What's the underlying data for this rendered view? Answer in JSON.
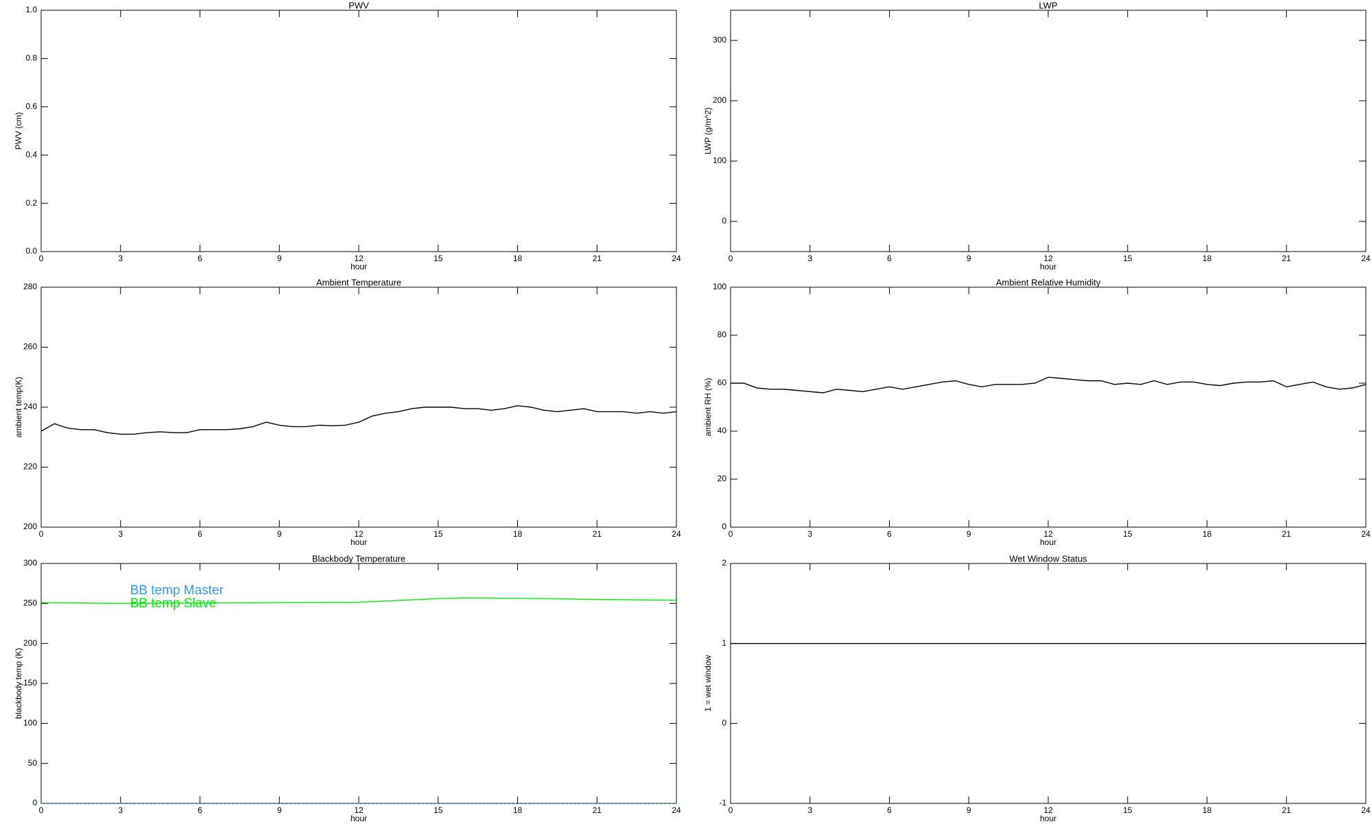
{
  "chart_data": [
    {
      "type": "line",
      "title": "PWV",
      "xlabel": "hour",
      "ylabel": "PWV (cm)",
      "xlim": [
        0,
        24
      ],
      "xticks": [
        0,
        3,
        6,
        9,
        12,
        15,
        18,
        21,
        24
      ],
      "ylim": [
        0,
        1
      ],
      "yticks": [
        {
          "value": 0,
          "label": "0.0"
        },
        0.2,
        0.4,
        0.6,
        0.8,
        {
          "value": 1,
          "label": "1.0"
        }
      ]
    },
    {
      "type": "line",
      "title": "LWP",
      "xlabel": "hour",
      "ylabel": "LWP (g/m^2)",
      "xlim": [
        0,
        24
      ],
      "xticks": [
        0,
        3,
        6,
        9,
        12,
        15,
        18,
        21,
        24
      ],
      "ylim": [
        -50,
        350
      ],
      "yticks": [
        0,
        100,
        200,
        300
      ]
    },
    {
      "type": "line",
      "title": "Ambient Temperature",
      "xlabel": "hour",
      "ylabel": "ambient temp(K)",
      "xlim": [
        0,
        24
      ],
      "xticks": [
        0,
        3,
        6,
        9,
        12,
        15,
        18,
        21,
        24
      ],
      "ylim": [
        200,
        280
      ],
      "yticks": [
        200,
        220,
        240,
        260,
        280
      ],
      "x": [
        0,
        0.5,
        1,
        1.5,
        2,
        2.5,
        3,
        3.5,
        4,
        4.5,
        5,
        5.5,
        6,
        6.5,
        7,
        7.5,
        8,
        8.5,
        9,
        9.5,
        10,
        10.5,
        11,
        11.5,
        12,
        12.5,
        13,
        13.5,
        14,
        14.5,
        15,
        15.5,
        16,
        16.5,
        17,
        17.5,
        18,
        18.5,
        19,
        19.5,
        20,
        20.5,
        21,
        21.5,
        22,
        22.5,
        23,
        23.5,
        24
      ],
      "series": [
        {
          "color": "#000000",
          "values": [
            232,
            234.5,
            233,
            232.5,
            232.5,
            231.5,
            231,
            231,
            231.5,
            231.8,
            231.5,
            231.5,
            232.5,
            232.5,
            232.5,
            232.8,
            233.5,
            235,
            234,
            233.5,
            233.5,
            234,
            233.8,
            234,
            235,
            237,
            238,
            238.5,
            239.5,
            240,
            240,
            240,
            239.5,
            239.5,
            239,
            239.5,
            240.5,
            240,
            239,
            238.5,
            239,
            239.5,
            238.5,
            238.5,
            238.5,
            238,
            238.5,
            238,
            238.5
          ]
        }
      ]
    },
    {
      "type": "line",
      "title": "Ambient Relative Humidity",
      "xlabel": "hour",
      "ylabel": "ambient RH (%)",
      "xlim": [
        0,
        24
      ],
      "xticks": [
        0,
        3,
        6,
        9,
        12,
        15,
        18,
        21,
        24
      ],
      "ylim": [
        0,
        100
      ],
      "yticks": [
        0,
        20,
        40,
        60,
        80,
        100
      ],
      "x": [
        0,
        0.5,
        1,
        1.5,
        2,
        2.5,
        3,
        3.5,
        4,
        4.5,
        5,
        5.5,
        6,
        6.5,
        7,
        7.5,
        8,
        8.5,
        9,
        9.5,
        10,
        10.5,
        11,
        11.5,
        12,
        12.5,
        13,
        13.5,
        14,
        14.5,
        15,
        15.5,
        16,
        16.5,
        17,
        17.5,
        18,
        18.5,
        19,
        19.5,
        20,
        20.5,
        21,
        21.5,
        22,
        22.5,
        23,
        23.5,
        24
      ],
      "series": [
        {
          "color": "#000000",
          "values": [
            60,
            60,
            58,
            57.5,
            57.5,
            57,
            56.5,
            56,
            57.5,
            57,
            56.5,
            57.5,
            58.5,
            57.5,
            58.5,
            59.5,
            60.5,
            61,
            59.5,
            58.5,
            59.5,
            59.5,
            59.5,
            60,
            62.5,
            62,
            61.5,
            61,
            61,
            59.5,
            60,
            59.5,
            61,
            59.5,
            60.5,
            60.5,
            59.5,
            59,
            60,
            60.5,
            60.5,
            61,
            58.5,
            59.5,
            60.5,
            58.5,
            57.5,
            58,
            59.5
          ]
        }
      ]
    },
    {
      "type": "line",
      "title": "Blackbody Temperature",
      "xlabel": "hour",
      "ylabel": "blackbody temp (K)",
      "xlim": [
        0,
        24
      ],
      "xticks": [
        0,
        3,
        6,
        9,
        12,
        15,
        18,
        21,
        24
      ],
      "ylim": [
        0,
        300
      ],
      "yticks": [
        0,
        50,
        100,
        150,
        200,
        250,
        300
      ],
      "legend": "upper left",
      "x": [
        0,
        3,
        6,
        9,
        12,
        15,
        16,
        18,
        21,
        24
      ],
      "series": [
        {
          "name": "BB temp Master",
          "color": "#3399ff",
          "linestyle": "dotted",
          "values": [
            0,
            0,
            0,
            0,
            0,
            0,
            0,
            0,
            0,
            0
          ]
        },
        {
          "name": "BB temp Slave",
          "color": "#00ee00",
          "values": [
            251,
            250,
            250.5,
            251,
            251.5,
            256,
            257,
            256.5,
            255,
            254
          ]
        }
      ]
    },
    {
      "type": "line",
      "title": "Wet Window Status",
      "xlabel": "hour",
      "ylabel": "1 = wet window",
      "xlim": [
        0,
        24
      ],
      "xticks": [
        0,
        3,
        6,
        9,
        12,
        15,
        18,
        21,
        24
      ],
      "ylim": [
        -1,
        2
      ],
      "yticks": [
        -1,
        0,
        1,
        2
      ],
      "x": [
        0,
        24
      ],
      "series": [
        {
          "color": "#000000",
          "values": [
            1,
            1
          ]
        }
      ]
    }
  ]
}
